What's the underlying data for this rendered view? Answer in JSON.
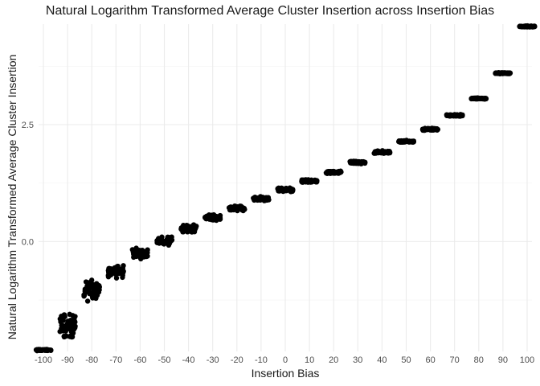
{
  "chart_data": {
    "type": "scatter",
    "title": "Natural Logarithm Transformed Average Cluster Insertion across Insertion Bias",
    "xlabel": "Insertion Bias",
    "ylabel": "Natural Logarithm Transformed Average Cluster Insertion",
    "x_ticks": [
      "-100",
      "-90",
      "-80",
      "-70",
      "-60",
      "-50",
      "-40",
      "-30",
      "-20",
      "-10",
      "0",
      "10",
      "20",
      "30",
      "40",
      "50",
      "60",
      "70",
      "80",
      "90",
      "100"
    ],
    "y_ticks": [
      "0.0",
      "2.5"
    ],
    "y_tick_values": [
      0,
      2.5
    ],
    "xlim": [
      -102,
      102
    ],
    "ylim": [
      -2.35,
      4.65
    ],
    "grid": true,
    "point_color": "#000000",
    "groups": [
      {
        "x": -100,
        "y": -2.32,
        "spread": 0.02
      },
      {
        "x": -90,
        "y": -1.8,
        "spread": 0.35
      },
      {
        "x": -80,
        "y": -1.05,
        "spread": 0.28
      },
      {
        "x": -70,
        "y": -0.63,
        "spread": 0.18
      },
      {
        "x": -60,
        "y": -0.25,
        "spread": 0.14
      },
      {
        "x": -50,
        "y": 0.02,
        "spread": 0.12
      },
      {
        "x": -40,
        "y": 0.28,
        "spread": 0.1
      },
      {
        "x": -30,
        "y": 0.51,
        "spread": 0.08
      },
      {
        "x": -20,
        "y": 0.71,
        "spread": 0.07
      },
      {
        "x": -10,
        "y": 0.91,
        "spread": 0.06
      },
      {
        "x": 0,
        "y": 1.1,
        "spread": 0.06
      },
      {
        "x": 10,
        "y": 1.29,
        "spread": 0.05
      },
      {
        "x": 20,
        "y": 1.48,
        "spread": 0.04
      },
      {
        "x": 30,
        "y": 1.69,
        "spread": 0.04
      },
      {
        "x": 40,
        "y": 1.91,
        "spread": 0.04
      },
      {
        "x": 50,
        "y": 2.14,
        "spread": 0.03
      },
      {
        "x": 60,
        "y": 2.4,
        "spread": 0.03
      },
      {
        "x": 70,
        "y": 2.7,
        "spread": 0.03
      },
      {
        "x": 80,
        "y": 3.06,
        "spread": 0.02
      },
      {
        "x": 90,
        "y": 3.6,
        "spread": 0.02
      },
      {
        "x": 100,
        "y": 4.6,
        "spread": 0.02
      }
    ]
  }
}
